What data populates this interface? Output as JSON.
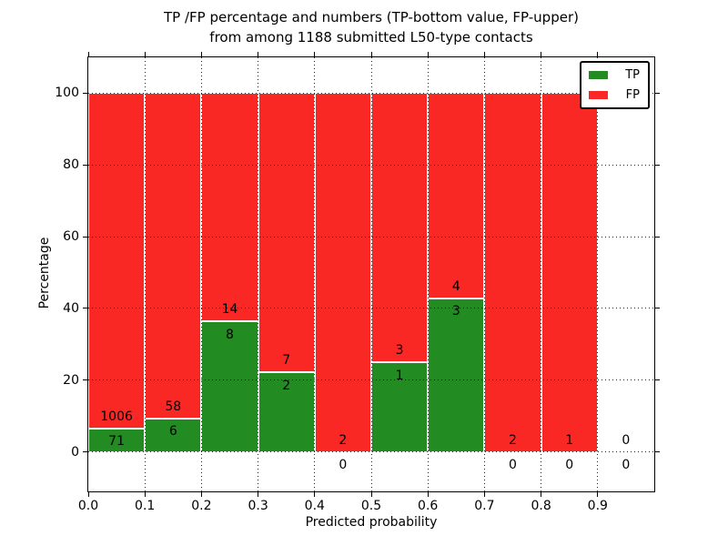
{
  "chart_data": {
    "type": "bar",
    "stacking": "percent",
    "title_line1": "TP /FP percentage and numbers (TP-bottom value, FP-upper)",
    "title_line2": "from among 1188 submitted L50-type contacts",
    "xlabel": "Predicted probability",
    "ylabel": "Percentage",
    "xlim": [
      0,
      1
    ],
    "ylim": [
      -11,
      110
    ],
    "grid": true,
    "x_tick_values": [
      0.0,
      0.1,
      0.2,
      0.3,
      0.4,
      0.5,
      0.6,
      0.7,
      0.8,
      0.9
    ],
    "x_tick_labels": [
      "0.0",
      "0.1",
      "0.2",
      "0.3",
      "0.4",
      "0.5",
      "0.6",
      "0.7",
      "0.8",
      "0.9"
    ],
    "y_ticks": [
      0,
      20,
      40,
      60,
      80,
      100
    ],
    "total_contacts": 1188,
    "bins": [
      {
        "x0": 0.0,
        "x1": 0.1,
        "tp": 71,
        "fp": 1006
      },
      {
        "x0": 0.1,
        "x1": 0.2,
        "tp": 6,
        "fp": 58
      },
      {
        "x0": 0.2,
        "x1": 0.3,
        "tp": 8,
        "fp": 14
      },
      {
        "x0": 0.3,
        "x1": 0.4,
        "tp": 2,
        "fp": 7
      },
      {
        "x0": 0.4,
        "x1": 0.5,
        "tp": 0,
        "fp": 2
      },
      {
        "x0": 0.5,
        "x1": 0.6,
        "tp": 1,
        "fp": 3
      },
      {
        "x0": 0.6,
        "x1": 0.7,
        "tp": 3,
        "fp": 4
      },
      {
        "x0": 0.7,
        "x1": 0.8,
        "tp": 0,
        "fp": 2
      },
      {
        "x0": 0.8,
        "x1": 0.9,
        "tp": 0,
        "fp": 1
      },
      {
        "x0": 0.9,
        "x1": 1.0,
        "tp": 0,
        "fp": 0
      }
    ],
    "legend": [
      {
        "label": "TP",
        "color": "#228b22"
      },
      {
        "label": "FP",
        "color": "#fa2825"
      }
    ],
    "colors": {
      "tp": "#228b22",
      "fp": "#fa2825",
      "grid": "#000000",
      "axis": "#000000",
      "background": "#ffffff",
      "text": "#000000"
    }
  }
}
